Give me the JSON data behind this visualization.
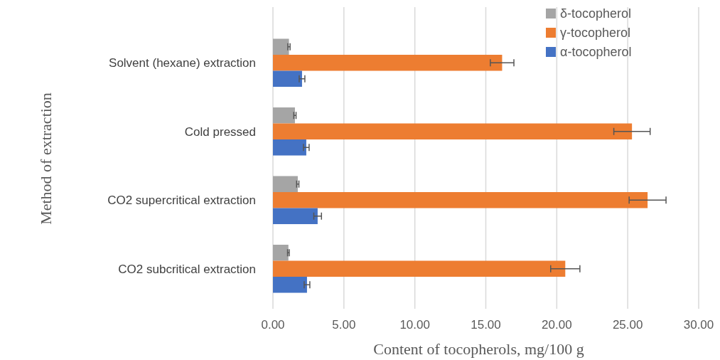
{
  "chart_data": {
    "type": "bar",
    "orientation": "horizontal",
    "xlabel": "Content of tocopherols, mg/100 g",
    "ylabel": "Method of extraction",
    "categories": [
      "Solvent (hexane) extraction",
      "Cold pressed",
      "CO2 supercritical extraction",
      "CO2 subcritical extraction"
    ],
    "series": [
      {
        "name": "δ-tocopherol",
        "color": "#a5a5a5",
        "values": [
          1.13,
          1.55,
          1.75,
          1.09
        ],
        "errors": [
          0.08,
          0.08,
          0.08,
          0.06
        ]
      },
      {
        "name": "γ-tocopherol",
        "color": "#ed7d31",
        "values": [
          16.15,
          25.3,
          26.4,
          20.6
        ],
        "errors": [
          0.83,
          1.28,
          1.3,
          1.03
        ]
      },
      {
        "name": "α-tocopherol",
        "color": "#4472c4",
        "values": [
          2.05,
          2.35,
          3.15,
          2.4
        ],
        "errors": [
          0.2,
          0.2,
          0.27,
          0.2
        ]
      }
    ],
    "xlim": [
      0,
      30
    ],
    "xticks": [
      {
        "value": 0,
        "label": "0.00"
      },
      {
        "value": 5,
        "label": "5.00"
      },
      {
        "value": 10,
        "label": "10.00"
      },
      {
        "value": 15,
        "label": "15.00"
      },
      {
        "value": 20,
        "label": "20.00"
      },
      {
        "value": 25,
        "label": "25.00"
      },
      {
        "value": 30,
        "label": "30.00"
      }
    ],
    "grid": "x",
    "legend": "top right"
  }
}
